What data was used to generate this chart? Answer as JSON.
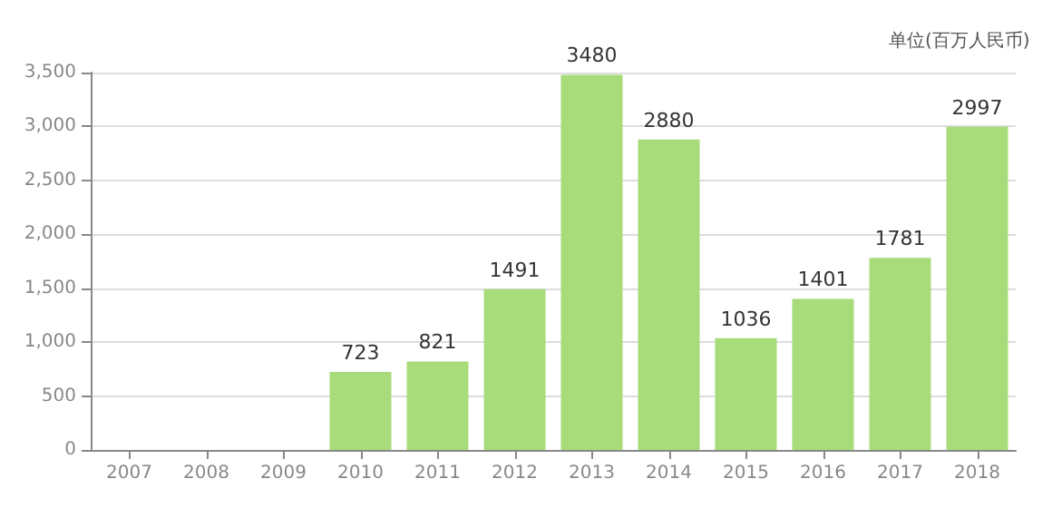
{
  "chart_data": {
    "type": "bar",
    "ylabel": "单位(百万人民币)",
    "categories": [
      "2007",
      "2008",
      "2009",
      "2010",
      "2011",
      "2012",
      "2013",
      "2014",
      "2015",
      "2016",
      "2017",
      "2018"
    ],
    "values": [
      null,
      null,
      null,
      723,
      821,
      1491,
      3480,
      2880,
      1036,
      1401,
      1781,
      2997
    ],
    "color": "#a8dc7a",
    "ylim": [
      0,
      3500
    ],
    "yticks": [
      {
        "value": 0,
        "label": "0"
      },
      {
        "value": 500,
        "label": "500"
      },
      {
        "value": 1000,
        "label": "1,000"
      },
      {
        "value": 1500,
        "label": "1,500"
      },
      {
        "value": 2000,
        "label": "2,000"
      },
      {
        "value": 2500,
        "label": "2,500"
      },
      {
        "value": 3000,
        "label": "3,000"
      },
      {
        "value": 3500,
        "label": "3,500"
      }
    ],
    "grid": "y",
    "data_labels": true
  }
}
